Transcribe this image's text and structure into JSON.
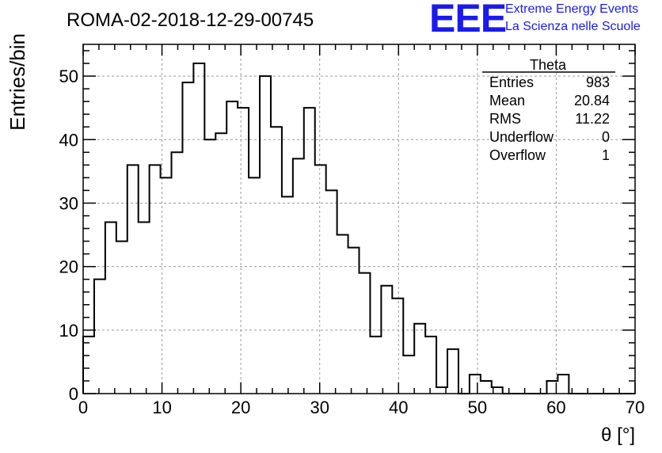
{
  "chart_data": {
    "type": "bar",
    "title": "ROMA-02-2018-12-29-00745",
    "xlabel": "θ [°]",
    "ylabel": "Entries/bin",
    "xlim": [
      0,
      70
    ],
    "ylim": [
      0,
      55
    ],
    "xticks": [
      0,
      10,
      20,
      30,
      40,
      50,
      60,
      70
    ],
    "yticks": [
      0,
      10,
      20,
      30,
      40,
      50
    ],
    "grid": true,
    "bin_width": 1.4,
    "bins_start": 0,
    "values": [
      9,
      18,
      27,
      24,
      36,
      27,
      36,
      34,
      38,
      49,
      52,
      40,
      41,
      46,
      45,
      34,
      50,
      42,
      31,
      37,
      45,
      36,
      32,
      25,
      23,
      19,
      9,
      17,
      15,
      6,
      11,
      9,
      1,
      7,
      0,
      3,
      2,
      1,
      0,
      0,
      0,
      0,
      2,
      3,
      0,
      0,
      0,
      0,
      0,
      0
    ],
    "stats": {
      "name": "Theta",
      "rows": [
        {
          "label": "Entries",
          "value": "983"
        },
        {
          "label": "Mean",
          "value": "20.84"
        },
        {
          "label": "RMS",
          "value": "11.22"
        },
        {
          "label": "Underflow",
          "value": "0"
        },
        {
          "label": "Overflow",
          "value": "1"
        }
      ]
    }
  },
  "logo": {
    "mark": "EEE",
    "line1": "Extreme Energy Events",
    "line2": "La Scienza nelle Scuole",
    "color": "#1a1aee"
  }
}
